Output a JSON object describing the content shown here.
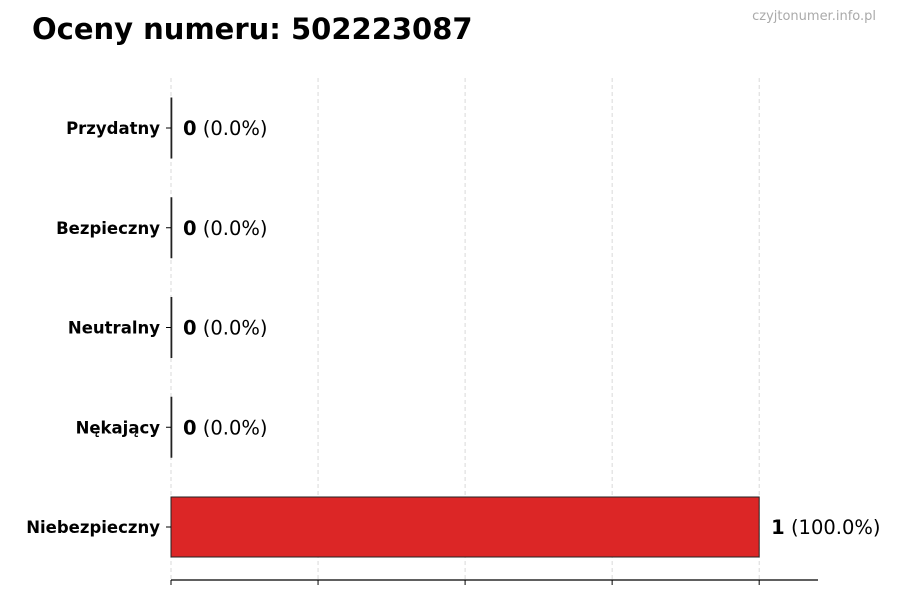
{
  "chart_data": {
    "type": "bar",
    "orientation": "horizontal",
    "title": "Oceny numeru: 502223087",
    "watermark": "czyjtonumer.info.pl",
    "categories": [
      "Przydatny",
      "Bezpieczny",
      "Neutralny",
      "Nękający",
      "Niebezpieczny"
    ],
    "values": [
      0,
      0,
      0,
      0,
      1
    ],
    "value_labels": [
      "0",
      "0",
      "0",
      "0",
      "1"
    ],
    "percent_labels": [
      "(0.0%)",
      "(0.0%)",
      "(0.0%)",
      "(0.0%)",
      "(100.0%)"
    ],
    "colors": [
      "#dc2626",
      "#dc2626",
      "#dc2626",
      "#dc2626",
      "#dc2626"
    ],
    "xlim": [
      0,
      1.1
    ],
    "xticks": [
      0,
      0.25,
      0.5,
      0.75,
      1
    ],
    "xtick_labels_shown": false,
    "grid": "vertical dashed",
    "xlabel": "",
    "ylabel": ""
  }
}
